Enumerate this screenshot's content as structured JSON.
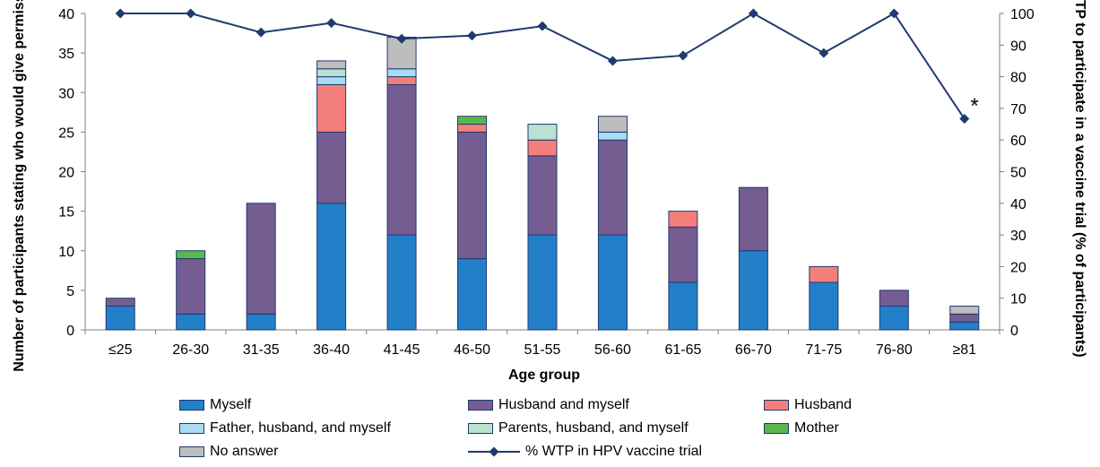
{
  "chart_data": {
    "type": "bar",
    "stacked": true,
    "categories": [
      "≤25",
      "26-30",
      "31-35",
      "36-40",
      "41-45",
      "46-50",
      "51-55",
      "56-60",
      "61-65",
      "66-70",
      "71-75",
      "76-80",
      "≥81"
    ],
    "xlabel": "Age group",
    "ylabel": "Number of participants stating who would give permission",
    "ylim": [
      0,
      40
    ],
    "yticks": [
      0,
      5,
      10,
      15,
      20,
      25,
      30,
      35,
      40
    ],
    "y2label": "WTP to participate in a vaccine trial (% of participants)",
    "y2lim": [
      0,
      100
    ],
    "y2ticks": [
      0,
      10,
      20,
      30,
      40,
      50,
      60,
      70,
      80,
      90,
      100
    ],
    "series": [
      {
        "name": "Myself",
        "color": "#2380c8",
        "values": [
          3,
          2,
          2,
          16,
          12,
          9,
          12,
          12,
          6,
          10,
          6,
          3,
          1
        ]
      },
      {
        "name": "Husband and myself",
        "color": "#755d92",
        "values": [
          1,
          7,
          14,
          9,
          19,
          16,
          10,
          12,
          7,
          8,
          0,
          2,
          1
        ]
      },
      {
        "name": "Husband",
        "color": "#f47f7a",
        "values": [
          0,
          0,
          0,
          6,
          1,
          1,
          2,
          0,
          2,
          0,
          2,
          0,
          0
        ]
      },
      {
        "name": "Father, husband, and myself",
        "color": "#a8dcf2",
        "values": [
          0,
          0,
          0,
          1,
          1,
          0,
          0,
          1,
          0,
          0,
          0,
          0,
          0
        ]
      },
      {
        "name": "Parents, husband, and myself",
        "color": "#b9e2d2",
        "values": [
          0,
          0,
          0,
          1,
          0,
          0,
          2,
          0,
          0,
          0,
          0,
          0,
          0
        ]
      },
      {
        "name": "Mother",
        "color": "#58b84c",
        "values": [
          0,
          1,
          0,
          0,
          0,
          1,
          0,
          0,
          0,
          0,
          0,
          0,
          0
        ]
      },
      {
        "name": "No answer",
        "color": "#bdbdbd",
        "values": [
          0,
          0,
          0,
          1,
          4,
          0,
          0,
          2,
          0,
          0,
          0,
          0,
          1
        ]
      }
    ],
    "line": {
      "name": "% WTP in HPV vaccine trial",
      "color": "#1f3a6e",
      "axis": "right",
      "values": [
        100,
        100,
        94,
        97,
        92,
        93,
        96,
        85,
        86.7,
        100,
        87.5,
        100,
        66.7
      ]
    },
    "annotation": "*",
    "legend_position": "bottom"
  }
}
